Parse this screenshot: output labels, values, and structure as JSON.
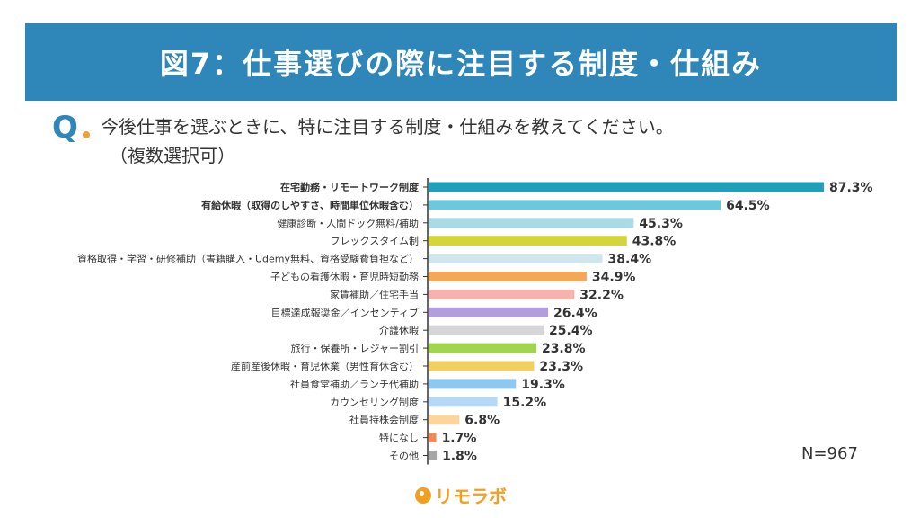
{
  "header": {
    "title": "図7：仕事選びの際に注目する制度・仕組み"
  },
  "question": {
    "mark": "Q",
    "text": "今後仕事を選ぶときに、特に注目する制度・仕組みを教えてください。",
    "sub": "（複数選択可）"
  },
  "footer": {
    "n_label": "N=967",
    "logo_text": "リモラボ"
  },
  "chart_data": {
    "type": "bar",
    "orientation": "horizontal",
    "xlim": [
      0,
      100
    ],
    "value_suffix": "%",
    "categories": [
      "在宅勤務・リモートワーク制度",
      "有給休暇（取得のしやすさ、時間単位休暇含む）",
      "健康診断・人間ドック無料/補助",
      "フレックスタイム制",
      "資格取得・学習・研修補助（書籍購入・Udemy無料、資格受験費負担など）",
      "子どもの看護休暇・育児時短勤務",
      "家賃補助／住宅手当",
      "目標達成報奨金／インセンティブ",
      "介護休暇",
      "旅行・保養所・レジャー割引",
      "産前産後休暇・育児休業（男性育休含む）",
      "社員食堂補助／ランチ代補助",
      "カウンセリング制度",
      "社員持株会制度",
      "特になし",
      "その他"
    ],
    "values": [
      87.3,
      64.5,
      45.3,
      43.8,
      38.4,
      34.9,
      32.2,
      26.4,
      25.4,
      23.8,
      23.3,
      19.3,
      15.2,
      6.8,
      1.7,
      1.8
    ],
    "value_labels": [
      "87.3%",
      "64.5%",
      "45.3%",
      "43.8%",
      "38.4%",
      "34.9%",
      "32.2%",
      "26.4%",
      "25.4%",
      "23.8%",
      "23.3%",
      "19.3%",
      "15.2%",
      "6.8%",
      "1.7%",
      "1.8%"
    ],
    "colors": [
      "#1f9fb8",
      "#6cc8dc",
      "#a9dbe6",
      "#d4d53a",
      "#cfe6ec",
      "#f3a858",
      "#f6b3ae",
      "#b39ddb",
      "#d6d6d6",
      "#9fd64e",
      "#f0d060",
      "#8ec8f0",
      "#b6d8f4",
      "#fbd59c",
      "#ee8a5a",
      "#a7a7a7"
    ],
    "bold_labels": [
      true,
      true,
      false,
      false,
      false,
      false,
      false,
      false,
      false,
      false,
      false,
      false,
      false,
      false,
      false,
      false
    ]
  }
}
